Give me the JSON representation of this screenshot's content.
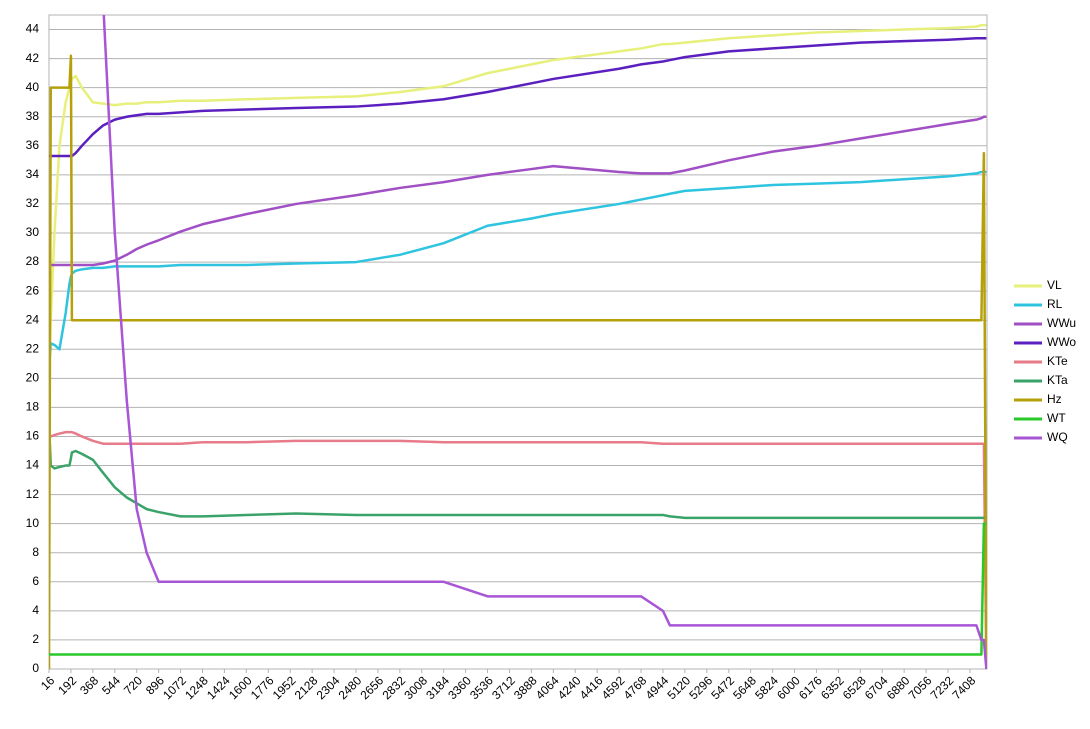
{
  "chart_data": {
    "type": "line",
    "x": [
      16,
      30,
      60,
      100,
      150,
      180,
      192,
      200,
      230,
      280,
      368,
      450,
      544,
      640,
      720,
      800,
      896,
      1072,
      1248,
      1600,
      2000,
      2480,
      2832,
      3184,
      3536,
      3888,
      4064,
      4592,
      4768,
      4944,
      5000,
      5120,
      5472,
      5824,
      6176,
      6528,
      6880,
      7232,
      7460,
      7500,
      7520,
      7540
    ],
    "xlim": [
      16,
      7545
    ],
    "xticks": [
      16,
      192,
      368,
      544,
      720,
      896,
      1072,
      1248,
      1424,
      1600,
      1776,
      1952,
      2128,
      2304,
      2480,
      2656,
      2832,
      3008,
      3184,
      3360,
      3536,
      3712,
      3888,
      4064,
      4240,
      4416,
      4592,
      4768,
      4944,
      5120,
      5296,
      5472,
      5648,
      5824,
      6000,
      6176,
      6352,
      6528,
      6704,
      6880,
      7056,
      7232,
      7408
    ],
    "ylim": [
      0,
      45
    ],
    "yticks": [
      0,
      2,
      4,
      6,
      8,
      10,
      12,
      14,
      16,
      18,
      20,
      22,
      24,
      26,
      28,
      30,
      32,
      34,
      36,
      38,
      40,
      42,
      44
    ],
    "grid": true,
    "legend": "right",
    "series": [
      {
        "name": "VL",
        "color": "#e6f07a",
        "values": [
          20.5,
          24,
          30,
          36,
          39,
          40,
          40.4,
          40.6,
          40.8,
          40,
          39,
          38.9,
          38.8,
          38.9,
          38.9,
          39,
          39,
          39.1,
          39.1,
          39.2,
          39.3,
          39.4,
          39.7,
          40.1,
          41,
          41.6,
          41.9,
          42.5,
          42.7,
          43,
          43,
          43.1,
          43.4,
          43.6,
          43.8,
          43.9,
          44,
          44.1,
          44.2,
          44.3,
          44.3,
          44.3
        ]
      },
      {
        "name": "RL",
        "color": "#2ec4e0",
        "values": [
          20.7,
          22.4,
          22.3,
          22,
          24.5,
          26.5,
          27,
          27.2,
          27.4,
          27.5,
          27.6,
          27.6,
          27.7,
          27.7,
          27.7,
          27.7,
          27.7,
          27.8,
          27.8,
          27.8,
          27.9,
          28,
          28.5,
          29.3,
          30.5,
          31,
          31.3,
          32,
          32.3,
          32.6,
          32.7,
          32.9,
          33.1,
          33.3,
          33.4,
          33.5,
          33.7,
          33.9,
          34.1,
          34.2,
          34.2,
          34.2
        ]
      },
      {
        "name": "WWu",
        "color": "#a04fc4",
        "values": [
          27.8,
          27.8,
          27.8,
          27.8,
          27.8,
          27.8,
          27.8,
          27.8,
          27.8,
          27.8,
          27.8,
          27.9,
          28.1,
          28.5,
          28.9,
          29.2,
          29.5,
          30.1,
          30.6,
          31.3,
          32,
          32.6,
          33.1,
          33.5,
          34,
          34.4,
          34.6,
          34.2,
          34.1,
          34.1,
          34.1,
          34.3,
          35,
          35.6,
          36,
          36.5,
          37,
          37.5,
          37.8,
          37.9,
          38,
          38
        ]
      },
      {
        "name": "WWo",
        "color": "#5b1fc0",
        "values": [
          35.3,
          35.3,
          35.3,
          35.3,
          35.3,
          35.3,
          35.3,
          35.3,
          35.5,
          36,
          36.8,
          37.4,
          37.8,
          38,
          38.1,
          38.2,
          38.2,
          38.3,
          38.4,
          38.5,
          38.6,
          38.7,
          38.9,
          39.2,
          39.7,
          40.3,
          40.6,
          41.3,
          41.6,
          41.8,
          41.9,
          42.1,
          42.5,
          42.7,
          42.9,
          43.1,
          43.2,
          43.3,
          43.4,
          43.4,
          43.4,
          43.4
        ]
      },
      {
        "name": "KTe",
        "color": "#e77b8a",
        "values": [
          16,
          16,
          16.1,
          16.2,
          16.3,
          16.3,
          16.3,
          16.3,
          16.2,
          16,
          15.7,
          15.5,
          15.5,
          15.5,
          15.5,
          15.5,
          15.5,
          15.5,
          15.6,
          15.6,
          15.7,
          15.7,
          15.7,
          15.6,
          15.6,
          15.6,
          15.6,
          15.6,
          15.6,
          15.5,
          15.5,
          15.5,
          15.5,
          15.5,
          15.5,
          15.5,
          15.5,
          15.5,
          15.5,
          15.5,
          15.5,
          0
        ]
      },
      {
        "name": "KTa",
        "color": "#3aa36a",
        "values": [
          17,
          14,
          13.8,
          13.9,
          14,
          14,
          14.5,
          14.9,
          15,
          14.8,
          14.4,
          13.5,
          12.5,
          11.8,
          11.4,
          11,
          10.8,
          10.5,
          10.5,
          10.6,
          10.7,
          10.6,
          10.6,
          10.6,
          10.6,
          10.6,
          10.6,
          10.6,
          10.6,
          10.6,
          10.5,
          10.4,
          10.4,
          10.4,
          10.4,
          10.4,
          10.4,
          10.4,
          10.4,
          10.4,
          10.4,
          10.4
        ]
      },
      {
        "name": "Hz",
        "color": "#b5a00a",
        "values": [
          0,
          40,
          40,
          40,
          40,
          40,
          42.2,
          24,
          24,
          24,
          24,
          24,
          24,
          24,
          24,
          24,
          24,
          24,
          24,
          24,
          24,
          24,
          24,
          24,
          24,
          24,
          24,
          24,
          24,
          24,
          24,
          24,
          24,
          24,
          24,
          24,
          24,
          24,
          24,
          24,
          35.5,
          0
        ]
      },
      {
        "name": "WT",
        "color": "#29c929",
        "values": [
          1,
          1,
          1,
          1,
          1,
          1,
          1,
          1,
          1,
          1,
          1,
          1,
          1,
          1,
          1,
          1,
          1,
          1,
          1,
          1,
          1,
          1,
          1,
          1,
          1,
          1,
          1,
          1,
          1,
          1,
          1,
          1,
          1,
          1,
          1,
          1,
          1,
          1,
          1,
          1,
          10,
          10
        ]
      },
      {
        "name": "WQ",
        "color": "#a855d6",
        "values": [
          null,
          null,
          null,
          null,
          null,
          null,
          null,
          null,
          null,
          null,
          null,
          46,
          30,
          18.5,
          11,
          8,
          6,
          6,
          6,
          6,
          6,
          6,
          6,
          6,
          5,
          5,
          5,
          5,
          5,
          4,
          3,
          3,
          3,
          3,
          3,
          3,
          3,
          3,
          3,
          2,
          2,
          0
        ]
      }
    ]
  }
}
